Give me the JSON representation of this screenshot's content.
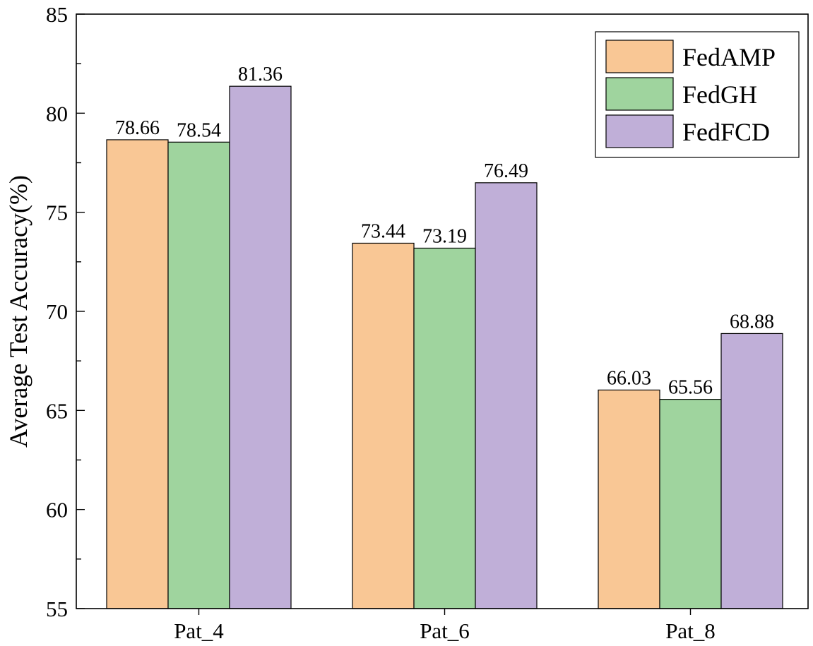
{
  "chart_data": {
    "type": "bar",
    "title": "",
    "xlabel": "",
    "ylabel": "Average Test Accuracy(%)",
    "ylim": [
      55,
      85
    ],
    "yticks": [
      55,
      60,
      65,
      70,
      75,
      80,
      85
    ],
    "categories": [
      "Pat_4",
      "Pat_6",
      "Pat_8"
    ],
    "series": [
      {
        "name": "FedAMP",
        "color": "#f9c795",
        "values": [
          78.66,
          73.44,
          66.03
        ]
      },
      {
        "name": "FedGH",
        "color": "#9fd49e",
        "values": [
          78.54,
          73.19,
          65.56
        ]
      },
      {
        "name": "FedFCD",
        "color": "#c0afd8",
        "values": [
          81.36,
          76.49,
          68.88
        ]
      }
    ],
    "legend": "top-right",
    "grid": false
  }
}
